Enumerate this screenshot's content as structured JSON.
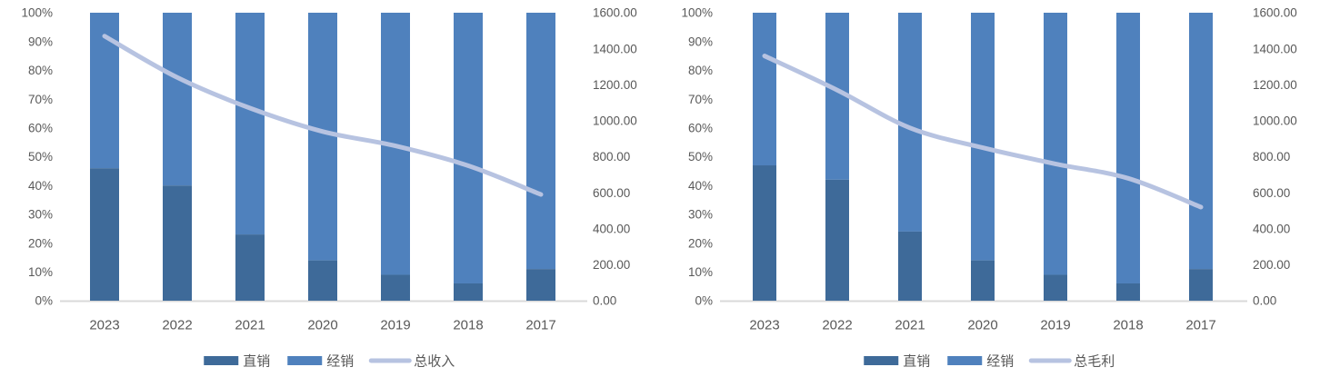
{
  "figure": {
    "background": "#ffffff",
    "text_color": "#595959",
    "axis_line_color": "#d9d9d9"
  },
  "chart_data": [
    {
      "type": "bar",
      "subtype": "100%-stacked-column-with-line-secondary-axis",
      "name": "revenue-mix-chart",
      "title": "",
      "categories": [
        "2023",
        "2022",
        "2021",
        "2020",
        "2019",
        "2018",
        "2017"
      ],
      "bar_series": [
        {
          "key": "direct-sales",
          "name": "直销",
          "color": "#3E6A99",
          "axis": "left",
          "values_pct": [
            46,
            40,
            23,
            14,
            9,
            6,
            11
          ]
        },
        {
          "key": "distribution",
          "name": "经销",
          "color": "#4F81BD",
          "axis": "left",
          "values_pct": [
            54,
            60,
            77,
            86,
            91,
            94,
            89
          ]
        }
      ],
      "line_series": {
        "key": "total-revenue",
        "name": "总收入",
        "color": "#B7C3E1",
        "axis": "right",
        "values": [
          1470,
          1240,
          1070,
          940,
          860,
          750,
          590
        ]
      },
      "left_axis": {
        "min": 0,
        "max": 100,
        "unit": "%",
        "ticks": [
          "0%",
          "10%",
          "20%",
          "30%",
          "40%",
          "50%",
          "60%",
          "70%",
          "80%",
          "90%",
          "100%"
        ]
      },
      "right_axis": {
        "min": 0,
        "max": 1600,
        "ticks": [
          "0.00",
          "200.00",
          "400.00",
          "600.00",
          "800.00",
          "1000.00",
          "1200.00",
          "1400.00",
          "1600.00"
        ]
      },
      "legend": [
        "直销",
        "经销",
        "总收入"
      ],
      "legend_position": "bottom",
      "grid": false
    },
    {
      "type": "bar",
      "subtype": "100%-stacked-column-with-line-secondary-axis",
      "name": "gross-profit-mix-chart",
      "title": "",
      "categories": [
        "2023",
        "2022",
        "2021",
        "2020",
        "2019",
        "2018",
        "2017"
      ],
      "bar_series": [
        {
          "key": "direct-sales",
          "name": "直销",
          "color": "#3E6A99",
          "axis": "left",
          "values_pct": [
            47,
            42,
            24,
            14,
            9,
            6,
            11
          ]
        },
        {
          "key": "distribution",
          "name": "经销",
          "color": "#4F81BD",
          "axis": "left",
          "values_pct": [
            53,
            58,
            76,
            86,
            91,
            94,
            89
          ]
        }
      ],
      "line_series": {
        "key": "total-gross-profit",
        "name": "总毛利",
        "color": "#B7C3E1",
        "axis": "right",
        "values": [
          1360,
          1170,
          960,
          850,
          760,
          680,
          520
        ]
      },
      "left_axis": {
        "min": 0,
        "max": 100,
        "unit": "%",
        "ticks": [
          "0%",
          "10%",
          "20%",
          "30%",
          "40%",
          "50%",
          "60%",
          "70%",
          "80%",
          "90%",
          "100%"
        ]
      },
      "right_axis": {
        "min": 0,
        "max": 1600,
        "ticks": [
          "0.00",
          "200.00",
          "400.00",
          "600.00",
          "800.00",
          "1000.00",
          "1200.00",
          "1400.00",
          "1600.00"
        ]
      },
      "legend": [
        "直销",
        "经销",
        "总毛利"
      ],
      "legend_position": "bottom",
      "grid": false
    }
  ]
}
